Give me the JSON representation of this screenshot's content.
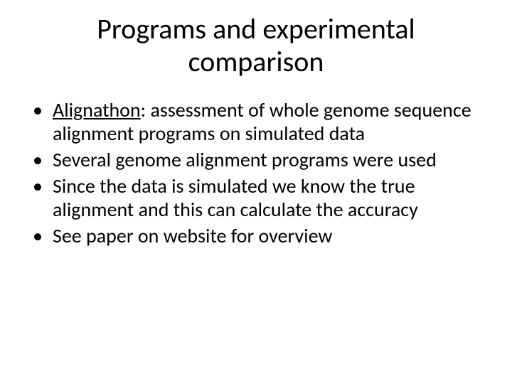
{
  "title_line1": "Programs and experimental",
  "title_line2": "comparison",
  "bullets": [
    {
      "lead": "Alignathon",
      "rest": ": assessment of whole genome sequence alignment programs on simulated data"
    },
    {
      "text": "Several genome alignment programs were used"
    },
    {
      "text": "Since the data is simulated we know the true alignment and this can calculate the accuracy"
    },
    {
      "text": "See paper on website for overview"
    }
  ],
  "colors": {
    "background": "#ffffff",
    "text": "#000000"
  },
  "fontsize": {
    "title": 40,
    "body": 28
  }
}
